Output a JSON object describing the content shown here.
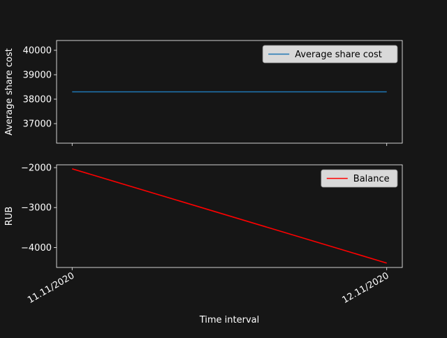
{
  "chart_data": [
    {
      "type": "line",
      "ylabel": "Average share cost",
      "ylim": [
        36200,
        40400
      ],
      "yticks": [
        37000,
        38000,
        39000,
        40000
      ],
      "categories": [
        "11.11/2020",
        "12.11/2020"
      ],
      "series": [
        {
          "name": "Average share cost",
          "values": [
            38300,
            38300
          ],
          "color": "#1f77b4"
        }
      ],
      "legend": "top-right",
      "grid": false
    },
    {
      "type": "line",
      "ylabel": "RUB",
      "xlabel": "Time interval",
      "ylim": [
        -4500,
        -1930
      ],
      "yticks": [
        -2000,
        -3000,
        -4000
      ],
      "ytick_labels": [
        "−2000",
        "−3000",
        "−4000"
      ],
      "categories": [
        "11.11/2020",
        "12.11/2020"
      ],
      "series": [
        {
          "name": "Balance",
          "values": [
            -2030,
            -4390
          ],
          "color": "#ff0000"
        }
      ],
      "legend": "top-right",
      "grid": false
    }
  ],
  "theme": {
    "background": "#161616",
    "axes_color": "#ffffff",
    "legend_bg": "#d9d9d9",
    "legend_border": "#8c8c8c",
    "legend_text": "#000000"
  }
}
